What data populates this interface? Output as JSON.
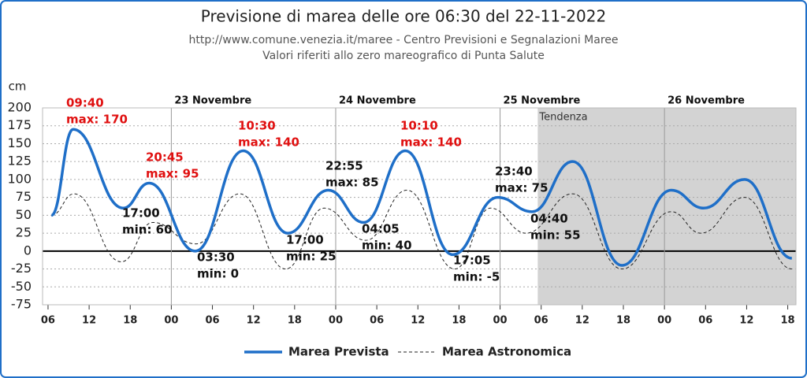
{
  "chart_data": {
    "type": "line",
    "title": "Previsione di marea delle ore 06:30 del 22-11-2022",
    "subtitle": [
      "http://www.comune.venezia.it/maree - Centro Previsioni e Segnalazioni Maree",
      "Valori riferiti allo zero mareografico di Punta Salute"
    ],
    "y_label": "cm",
    "xlim": [
      5.2,
      115.2
    ],
    "ylim": [
      -75,
      200
    ],
    "yticks": [
      -75,
      -50,
      -25,
      0,
      25,
      50,
      75,
      100,
      125,
      150,
      175,
      200
    ],
    "xticks": [
      {
        "value": 6,
        "label": "06"
      },
      12,
      18,
      {
        "value": 24,
        "label": "00"
      },
      {
        "value": 30,
        "label": "06"
      },
      {
        "value": 36,
        "label": "12"
      },
      {
        "value": 42,
        "label": "18"
      },
      {
        "value": 48,
        "label": "00"
      },
      {
        "value": 54,
        "label": "06"
      },
      {
        "value": 60,
        "label": "12"
      },
      {
        "value": 66,
        "label": "18"
      },
      {
        "value": 72,
        "label": "00"
      },
      {
        "value": 78,
        "label": "06"
      },
      {
        "value": 84,
        "label": "12"
      },
      {
        "value": 90,
        "label": "18"
      },
      {
        "value": 96,
        "label": "00"
      },
      {
        "value": 102,
        "label": "06"
      },
      {
        "value": 108,
        "label": "12"
      },
      {
        "value": 114,
        "label": "18"
      }
    ],
    "day_ticks": [
      {
        "value": 24,
        "label": "23 Novembre"
      },
      {
        "value": 48,
        "label": "24 Novembre"
      },
      {
        "value": 72,
        "label": "25 Novembre"
      },
      {
        "value": 96,
        "label": "26 Novembre"
      }
    ],
    "trend": {
      "from": 77.5,
      "label": "Tendenza",
      "color": "#d3d3d3"
    },
    "grid": true,
    "series": [
      {
        "name": "Marea Prevista",
        "color": "#1f6fc8",
        "dashed": false,
        "x": [
          6.5,
          9.67,
          17,
          20.75,
          27.5,
          34.5,
          41,
          46.92,
          52.08,
          58.17,
          65.08,
          71.67,
          76.67,
          82.6,
          89.8,
          97,
          101.7,
          107.7,
          114.6
        ],
        "values": [
          50,
          170,
          60,
          95,
          0,
          140,
          25,
          85,
          40,
          140,
          -5,
          75,
          55,
          125,
          -20,
          85,
          60,
          100,
          -10
        ]
      },
      {
        "name": "Marea Astronomica",
        "color": "#222222",
        "dashed": true,
        "x": [
          6.5,
          9.8,
          16.7,
          21.3,
          27.6,
          34,
          40.7,
          46.3,
          52.4,
          58.4,
          65.4,
          70.6,
          75.8,
          82.6,
          89.8,
          97,
          101.3,
          107.7,
          114.6
        ],
        "values": [
          50,
          80,
          -15,
          40,
          10,
          80,
          -25,
          60,
          15,
          85,
          -25,
          60,
          25,
          80,
          -25,
          55,
          25,
          75,
          -25
        ]
      }
    ],
    "annotations": [
      {
        "time": "09:40",
        "text": "max: 170",
        "color": "#e01010"
      },
      {
        "time": "17:00",
        "text": "min: 60",
        "color": "#111111"
      },
      {
        "time": "20:45",
        "text": "max: 95",
        "color": "#e01010"
      },
      {
        "time": "03:30",
        "text": "min: 0",
        "color": "#111111"
      },
      {
        "time": "10:30",
        "text": "max: 140",
        "color": "#e01010"
      },
      {
        "time": "17:00",
        "text": "min: 25",
        "color": "#111111"
      },
      {
        "time": "22:55",
        "text": "max: 85",
        "color": "#111111"
      },
      {
        "time": "04:05",
        "text": "min: 40",
        "color": "#111111"
      },
      {
        "time": "10:10",
        "text": "max: 140",
        "color": "#e01010"
      },
      {
        "time": "17:05",
        "text": "min: -5",
        "color": "#111111"
      },
      {
        "time": "23:40",
        "text": "max: 75",
        "color": "#111111"
      },
      {
        "time": "04:40",
        "text": "min: 55",
        "color": "#111111"
      }
    ]
  }
}
